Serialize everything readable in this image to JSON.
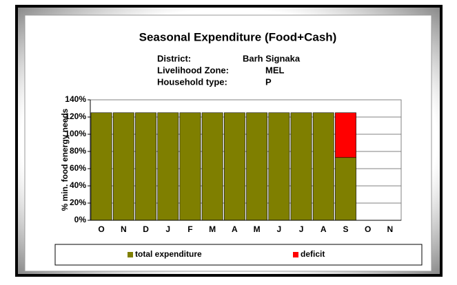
{
  "chart_data": {
    "type": "bar",
    "stacked": true,
    "title": "Seasonal Expenditure (Food+Cash)",
    "info": [
      {
        "label": "District:",
        "value": "Barh Signaka"
      },
      {
        "label": "Livelihood Zone:",
        "value": "MEL"
      },
      {
        "label": "Household type:",
        "value": "P"
      }
    ],
    "y_label": "% min. food energy needs",
    "categories": [
      "O",
      "N",
      "D",
      "J",
      "F",
      "M",
      "A",
      "M",
      "J",
      "J",
      "A",
      "S",
      "O",
      "N"
    ],
    "series": [
      {
        "name": "total expenditure",
        "color": "#7f7f00",
        "values": [
          125,
          125,
          125,
          125,
          125,
          125,
          125,
          125,
          125,
          125,
          125,
          73,
          null,
          null
        ]
      },
      {
        "name": "deficit",
        "color": "#ff0000",
        "values": [
          null,
          null,
          null,
          null,
          null,
          null,
          null,
          null,
          null,
          null,
          null,
          52,
          null,
          null
        ]
      }
    ],
    "ylim": [
      0,
      140
    ],
    "yticks": [
      {
        "value": 0,
        "label": "0%"
      },
      {
        "value": 20,
        "label": "20%"
      },
      {
        "value": 40,
        "label": "40%"
      },
      {
        "value": 60,
        "label": "60%"
      },
      {
        "value": 80,
        "label": "80%"
      },
      {
        "value": 100,
        "label": "100%"
      },
      {
        "value": 120,
        "label": "120%"
      },
      {
        "value": 140,
        "label": "140%"
      }
    ],
    "grid": true,
    "legend": "bottom"
  }
}
